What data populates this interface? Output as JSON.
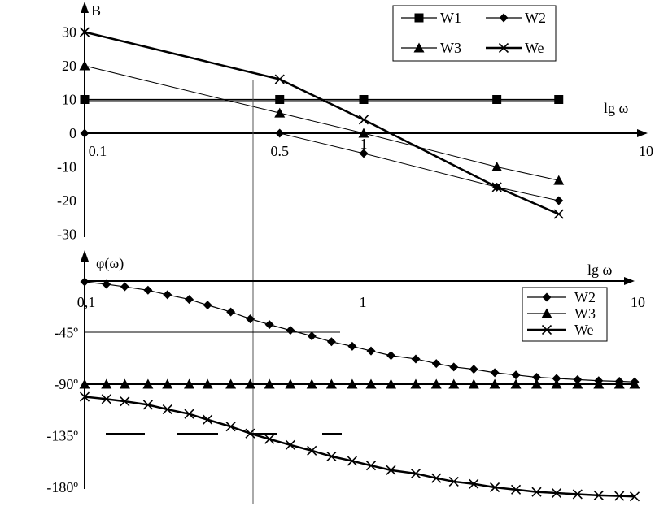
{
  "chart_data": [
    {
      "type": "line",
      "x_scale": "log",
      "xlabel": "lg ω",
      "ylabel": "B",
      "xlim": [
        0.1,
        10
      ],
      "ylim": [
        -30,
        30
      ],
      "y_ticks": [
        "30",
        "20",
        "10",
        "0",
        "-10",
        "-20",
        "-30"
      ],
      "y_tick_values": [
        30,
        20,
        10,
        0,
        -10,
        -20,
        -30
      ],
      "x_ticks": [
        "0.1",
        "0.5",
        "1",
        "10"
      ],
      "x_tick_values": [
        0.1,
        0.5,
        1,
        10
      ],
      "series": [
        {
          "name": "W1",
          "marker": "square",
          "x": [
            0.1,
            0.5,
            1,
            3,
            5
          ],
          "y": [
            10,
            10,
            10,
            10,
            10
          ]
        },
        {
          "name": "W2",
          "marker": "diamond",
          "x": [
            0.1,
            0.5,
            1,
            3,
            5
          ],
          "y": [
            0,
            0,
            -6,
            -16,
            -20
          ]
        },
        {
          "name": "W3",
          "marker": "triangle",
          "x": [
            0.1,
            0.5,
            1,
            3,
            5
          ],
          "y": [
            20,
            6,
            0,
            -10,
            -14
          ]
        },
        {
          "name": "We",
          "marker": "x",
          "x": [
            0.1,
            0.5,
            1,
            3,
            5
          ],
          "y": [
            30,
            16,
            4,
            -16,
            -24
          ]
        }
      ],
      "legend": {
        "position": "top-right",
        "entries": [
          "W1",
          "W2",
          "W3",
          "We"
        ]
      }
    },
    {
      "type": "line",
      "x_scale": "log",
      "xlabel": "lg ω",
      "ylabel": "φ(ω)",
      "xlim": [
        0.1,
        10
      ],
      "ylim": [
        -180,
        0
      ],
      "y_ticks": [
        "-45º",
        "-90º",
        "-135º",
        "-180º"
      ],
      "y_tick_values": [
        -45,
        -90,
        -135,
        -180
      ],
      "x_ticks": [
        "0,1",
        "1",
        "10"
      ],
      "x_tick_values": [
        0.1,
        1,
        10
      ],
      "series": [
        {
          "name": "W2",
          "marker": "diamond",
          "x": [
            0.1,
            0.12,
            0.14,
            0.17,
            0.2,
            0.24,
            0.28,
            0.34,
            0.4,
            0.47,
            0.56,
            0.67,
            0.79,
            0.94,
            1.1,
            1.3,
            1.6,
            1.9,
            2.2,
            2.6,
            3.1,
            3.7,
            4.4,
            5.2,
            6.2,
            7.4,
            8.8,
            10
          ],
          "y": [
            -0.7,
            -2.8,
            -5,
            -8,
            -12,
            -16,
            -21,
            -27,
            -33,
            -38,
            -43,
            -48,
            -53,
            -57,
            -61,
            -65,
            -68,
            -72,
            -75,
            -77,
            -80,
            -82,
            -84,
            -85,
            -86,
            -87,
            -87.5,
            -88
          ]
        },
        {
          "name": "W3",
          "marker": "triangle",
          "x": [
            0.1,
            0.12,
            0.14,
            0.17,
            0.2,
            0.24,
            0.28,
            0.34,
            0.4,
            0.47,
            0.56,
            0.67,
            0.79,
            0.94,
            1.1,
            1.3,
            1.6,
            1.9,
            2.2,
            2.6,
            3.1,
            3.7,
            4.4,
            5.2,
            6.2,
            7.4,
            8.8,
            10
          ],
          "y": [
            -90,
            -90,
            -90,
            -90,
            -90,
            -90,
            -90,
            -90,
            -90,
            -90,
            -90,
            -90,
            -90,
            -90,
            -90,
            -90,
            -90,
            -90,
            -90,
            -90,
            -90,
            -90,
            -90,
            -90,
            -90,
            -90,
            -90,
            -90
          ]
        },
        {
          "name": "We",
          "marker": "x",
          "x": [
            0.1,
            0.12,
            0.14,
            0.17,
            0.2,
            0.24,
            0.28,
            0.34,
            0.4,
            0.47,
            0.56,
            0.67,
            0.79,
            0.94,
            1.1,
            1.3,
            1.6,
            1.9,
            2.2,
            2.6,
            3.1,
            3.7,
            4.4,
            5.2,
            6.2,
            7.4,
            8.8,
            10
          ],
          "y": [
            -101,
            -103,
            -105,
            -108,
            -112,
            -116,
            -121,
            -127,
            -133,
            -138,
            -143,
            -148,
            -153,
            -157,
            -161,
            -165,
            -168,
            -172,
            -175,
            -177,
            -180,
            -182,
            -184,
            -185,
            -186,
            -187,
            -187.5,
            -188
          ]
        }
      ],
      "legend": {
        "position": "right",
        "entries": [
          "W2",
          "W3",
          "We"
        ]
      }
    }
  ]
}
